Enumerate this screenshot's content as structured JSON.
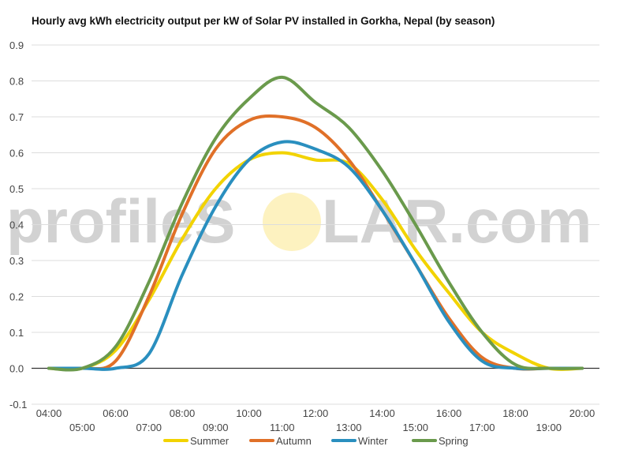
{
  "chart_data": {
    "type": "line",
    "title": "Hourly avg kWh electricity output per kW of Solar PV installed in Gorkha, Nepal (by season)",
    "xlabel": "",
    "ylabel": "",
    "x": [
      "04:00",
      "05:00",
      "06:00",
      "07:00",
      "08:00",
      "09:00",
      "10:00",
      "11:00",
      "12:00",
      "13:00",
      "14:00",
      "15:00",
      "16:00",
      "17:00",
      "18:00",
      "19:00",
      "20:00"
    ],
    "ylim": [
      -0.1,
      0.9
    ],
    "yticks": [
      "-0.1",
      "0.0",
      "0.1",
      "0.2",
      "0.3",
      "0.4",
      "0.5",
      "0.6",
      "0.7",
      "0.8",
      "0.9"
    ],
    "grid": true,
    "legend_position": "bottom",
    "series": [
      {
        "name": "Summer",
        "color": "#f2d300",
        "values": [
          0.0,
          0.0,
          0.05,
          0.19,
          0.36,
          0.5,
          0.58,
          0.6,
          0.58,
          0.57,
          0.47,
          0.33,
          0.21,
          0.1,
          0.04,
          0.0,
          0.0
        ]
      },
      {
        "name": "Autumn",
        "color": "#e07028",
        "values": [
          0.0,
          0.0,
          0.02,
          0.2,
          0.43,
          0.61,
          0.69,
          0.7,
          0.67,
          0.58,
          0.44,
          0.29,
          0.14,
          0.03,
          0.0,
          0.0,
          0.0
        ]
      },
      {
        "name": "Winter",
        "color": "#2a8fbf",
        "values": [
          0.0,
          0.0,
          0.0,
          0.04,
          0.26,
          0.45,
          0.58,
          0.63,
          0.61,
          0.56,
          0.44,
          0.29,
          0.13,
          0.02,
          0.0,
          0.0,
          0.0
        ]
      },
      {
        "name": "Spring",
        "color": "#6a9a4c",
        "values": [
          0.0,
          0.0,
          0.06,
          0.24,
          0.46,
          0.64,
          0.75,
          0.81,
          0.74,
          0.67,
          0.55,
          0.4,
          0.24,
          0.1,
          0.01,
          0.0,
          0.0
        ]
      }
    ]
  },
  "watermark": {
    "text_left": "profileS",
    "text_right": "LAR.com",
    "sun_color": "#fdf2c0"
  },
  "colors": {
    "grid": "#dddddd",
    "zero_line": "#333333",
    "text": "#444444"
  }
}
